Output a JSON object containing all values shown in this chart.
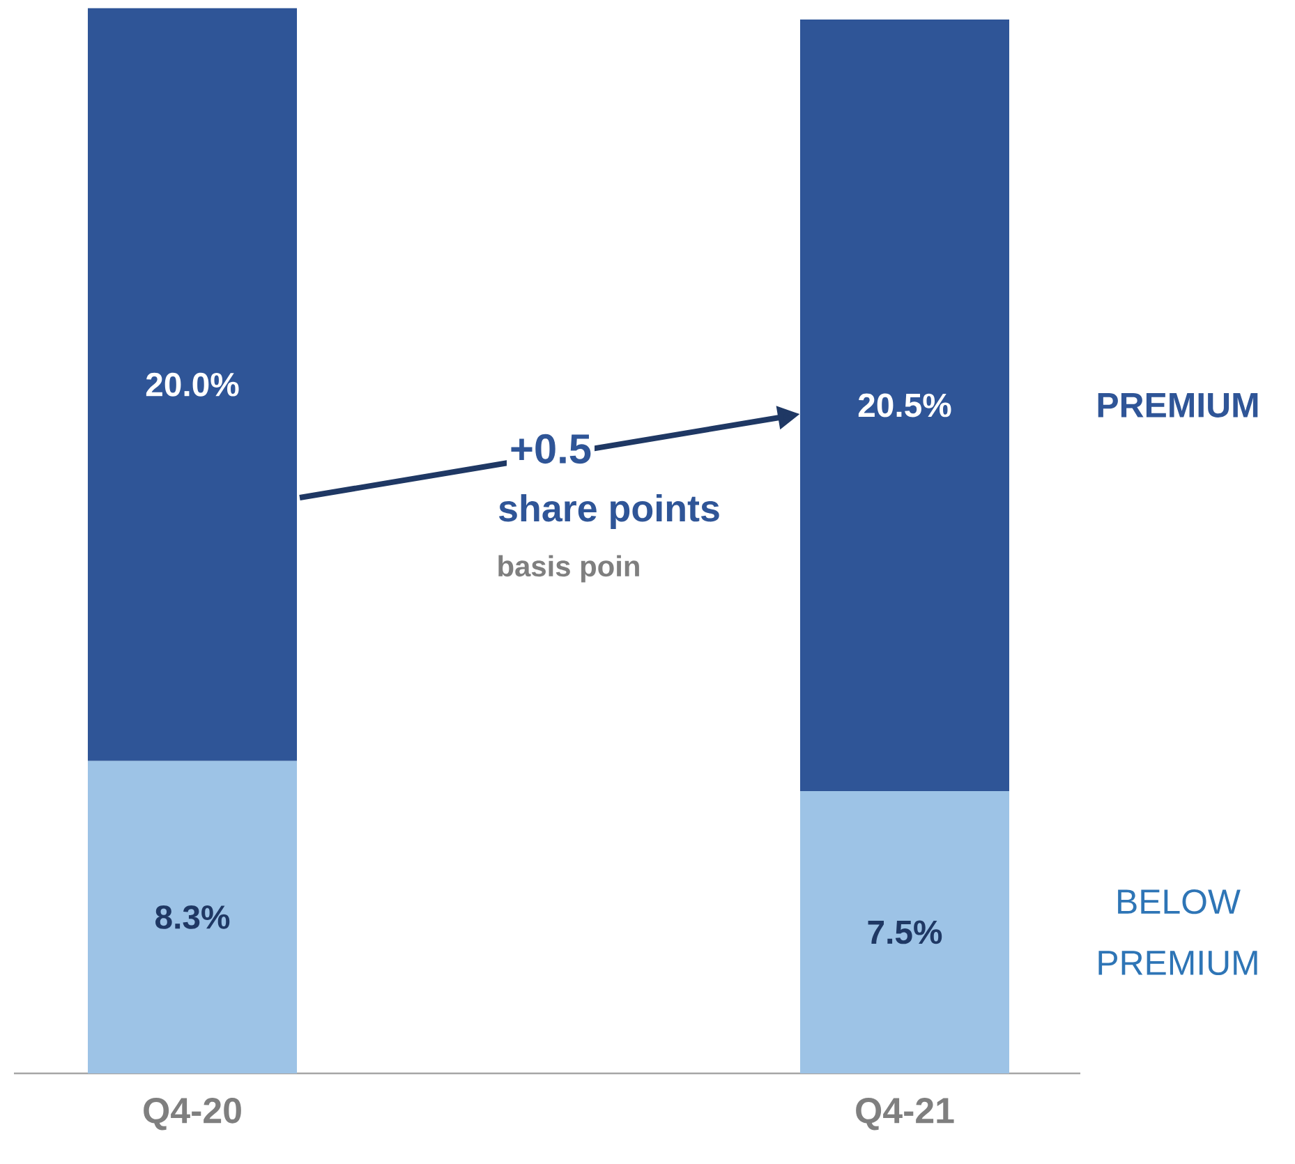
{
  "chart_data": {
    "type": "bar",
    "stacked": true,
    "categories": [
      "Q4-20",
      "Q4-21"
    ],
    "series": [
      {
        "name": "BELOW PREMIUM",
        "color": "#9dc3e6",
        "values": [
          8.3,
          7.5
        ],
        "value_labels": [
          "8.3%",
          "7.5%"
        ]
      },
      {
        "name": "PREMIUM",
        "color": "#2f5597",
        "values": [
          20.0,
          20.5
        ],
        "value_labels": [
          "20.0%",
          "20.5%"
        ]
      }
    ],
    "annotations": [
      "+0.5",
      "share points",
      "basis poin"
    ]
  }
}
